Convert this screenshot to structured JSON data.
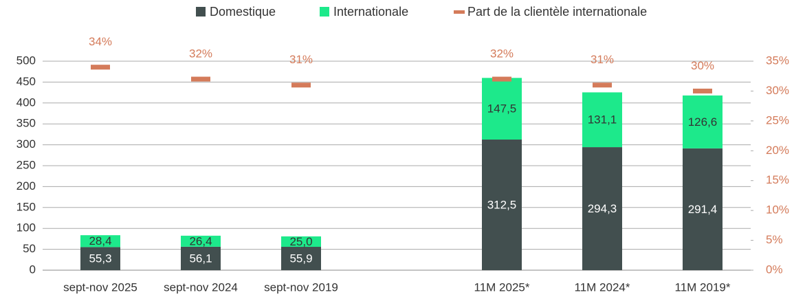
{
  "chart_data": {
    "type": "bar",
    "stacked": true,
    "categories": [
      "sept-nov 2025",
      "sept-nov 2024",
      "sept-nov 2019",
      null,
      "11M 2025*",
      "11M 2024*",
      "11M 2019*"
    ],
    "series": [
      {
        "name": "Domestique",
        "color": "#424f4f",
        "values": [
          55.3,
          56.1,
          55.9,
          null,
          312.5,
          294.3,
          291.4
        ],
        "value_labels": [
          "55,3",
          "56,1",
          "55,9",
          null,
          "312,5",
          "294,3",
          "291,4"
        ]
      },
      {
        "name": "Internationale",
        "color": "#1de98b",
        "values": [
          28.4,
          26.4,
          25.0,
          null,
          147.5,
          131.1,
          126.6
        ],
        "value_labels": [
          "28,4",
          "26,4",
          "25,0",
          null,
          "147,5",
          "131,1",
          "126,6"
        ]
      },
      {
        "name": "Part de la clientèle internationale",
        "color": "#d47b5a",
        "axis": "y2",
        "marker": "dash",
        "values": [
          34,
          32,
          31,
          null,
          32,
          31,
          30
        ],
        "value_labels": [
          "34%",
          "32%",
          "31%",
          null,
          "32%",
          "31%",
          "30%"
        ]
      }
    ],
    "ylim": [
      0,
      500
    ],
    "yticks": [
      0,
      50,
      100,
      150,
      200,
      250,
      300,
      350,
      400,
      450,
      500
    ],
    "y2lim": [
      0,
      35
    ],
    "y2ticks": [
      {
        "value": 0,
        "label": "0%"
      },
      {
        "value": 5,
        "label": "5%"
      },
      {
        "value": 10,
        "label": "10%"
      },
      {
        "value": 15,
        "label": "15%"
      },
      {
        "value": 20,
        "label": "20%"
      },
      {
        "value": 25,
        "label": "25%"
      },
      {
        "value": 30,
        "label": "30%"
      },
      {
        "value": 35,
        "label": "35%"
      }
    ],
    "grid": true,
    "legend": "top"
  }
}
